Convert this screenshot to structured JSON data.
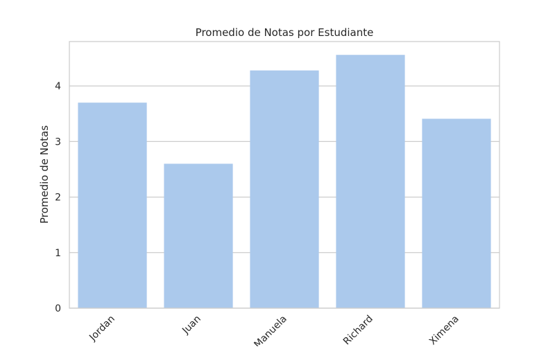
{
  "chart_data": {
    "type": "bar",
    "title": "Promedio de Notas por Estudiante",
    "xlabel": "",
    "ylabel": "Promedio de Notas",
    "categories": [
      "Jordan",
      "Juan",
      "Manuela",
      "Richard",
      "Ximena"
    ],
    "values": [
      3.7,
      2.6,
      4.28,
      4.56,
      3.41
    ],
    "ylim": [
      0,
      4.8
    ],
    "yticks": [
      0,
      1,
      2,
      3,
      4
    ],
    "grid": true,
    "bar_color": "#abc9ec",
    "grid_color": "#cccccc",
    "frame_color": "#cccccc",
    "xtick_rotation_deg": 45
  }
}
